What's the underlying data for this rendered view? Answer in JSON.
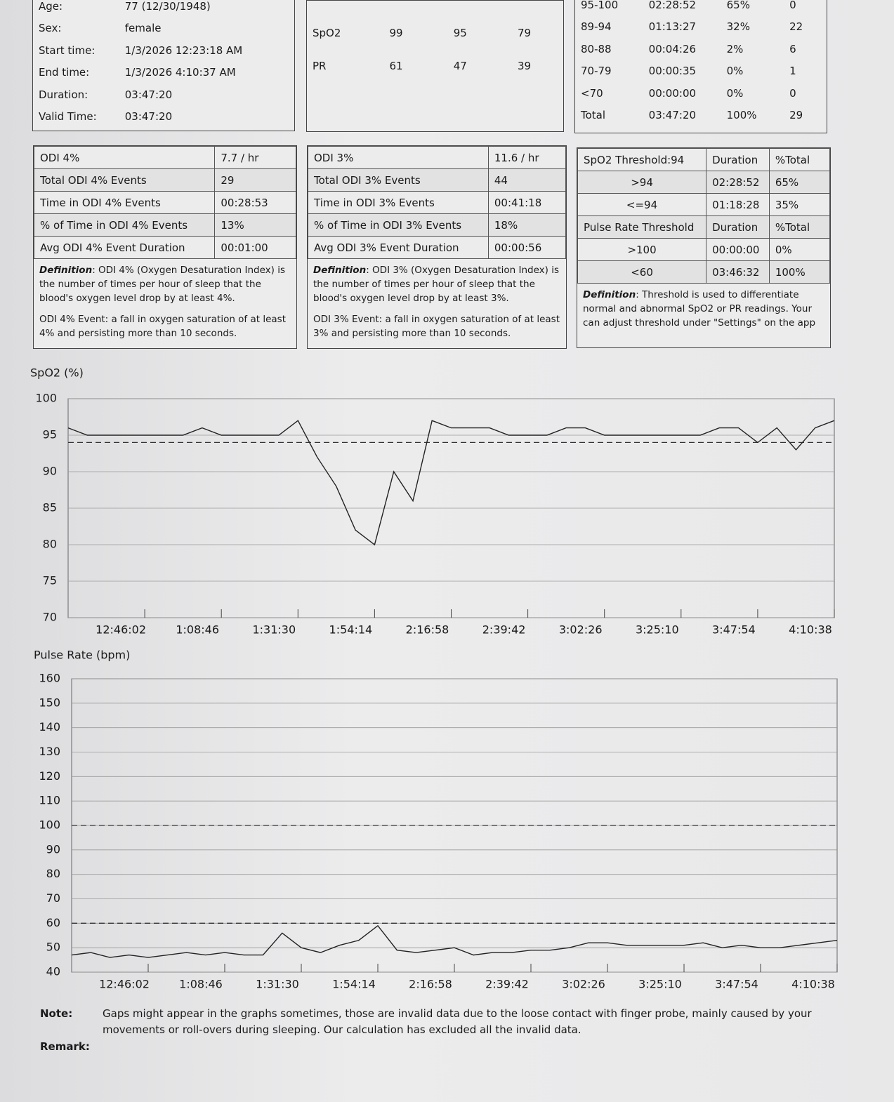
{
  "info": {
    "rows": [
      [
        "Age:",
        "77 (12/30/1948)"
      ],
      [
        "Sex:",
        "female"
      ],
      [
        "Start time:",
        "1/3/2026 12:23:18 AM"
      ],
      [
        "End time:",
        "1/3/2026 4:10:37 AM"
      ],
      [
        "Duration:",
        "03:47:20"
      ],
      [
        "Valid Time:",
        "03:47:20"
      ]
    ]
  },
  "summary": {
    "rows": [
      [
        "SpO2",
        "99",
        "95",
        "79"
      ],
      [
        "PR",
        "61",
        "47",
        "39"
      ]
    ]
  },
  "ranges": {
    "rows": [
      [
        "95-100",
        "02:28:52",
        "65%",
        "0"
      ],
      [
        "89-94",
        "01:13:27",
        "32%",
        "22"
      ],
      [
        "80-88",
        "00:04:26",
        "2%",
        "6"
      ],
      [
        "70-79",
        "00:00:35",
        "0%",
        "1"
      ],
      [
        "<70",
        "00:00:00",
        "0%",
        "0"
      ],
      [
        "Total",
        "03:47:20",
        "100%",
        "29"
      ]
    ]
  },
  "odi4": {
    "rows": [
      [
        "ODI 4%",
        "7.7 / hr"
      ],
      [
        "Total ODI 4% Events",
        "29"
      ],
      [
        "Time in ODI 4% Events",
        "00:28:53"
      ],
      [
        "% of Time in ODI 4% Events",
        "13%"
      ],
      [
        "Avg ODI 4% Event Duration",
        "00:01:00"
      ]
    ],
    "definition_label": "Definition",
    "definition": ": ODI 4% (Oxygen Desaturation Index) is the number of times per hour of sleep that the blood's oxygen level drop by at least 4%.",
    "event": "ODI 4% Event: a fall in oxygen saturation of at least 4% and persisting more than 10 seconds."
  },
  "odi3": {
    "rows": [
      [
        "ODI 3%",
        "11.6 / hr"
      ],
      [
        "Total ODI 3% Events",
        "44"
      ],
      [
        "Time in ODI 3% Events",
        "00:41:18"
      ],
      [
        "% of Time in ODI 3% Events",
        "18%"
      ],
      [
        "Avg ODI 3% Event Duration",
        "00:00:56"
      ]
    ],
    "definition_label": "Definition",
    "definition": ": ODI 3% (Oxygen Desaturation Index) is the number of times per hour of sleep that the blood's oxygen level drop by at least 3%.",
    "event": "ODI 3% Event: a fall in oxygen saturation of at least 3% and persisting more than 10 seconds."
  },
  "threshold": {
    "rows": [
      [
        "SpO2 Threshold:94",
        "Duration",
        "%Total"
      ],
      [
        ">94",
        "02:28:52",
        "65%"
      ],
      [
        "<=94",
        "01:18:28",
        "35%"
      ],
      [
        "Pulse Rate Threshold",
        "Duration",
        "%Total"
      ],
      [
        ">100",
        "00:00:00",
        "0%"
      ],
      [
        "<60",
        "03:46:32",
        "100%"
      ]
    ],
    "definition_label": "Definition",
    "definition": ": Threshold is used to differentiate normal and abnormal SpO2 or PR readings. Your can adjust threshold under \"Settings\" on the app"
  },
  "chart_data": [
    {
      "type": "line",
      "title": "SpO2 (%)",
      "color": "#222222",
      "grid": true,
      "x": [
        "12:23:18",
        "12:28:59",
        "12:34:40",
        "12:40:21",
        "12:46:02",
        "12:51:43",
        "12:57:24",
        "1:03:05",
        "1:08:46",
        "1:14:27",
        "1:20:08",
        "1:25:49",
        "1:31:30",
        "1:37:11",
        "1:42:52",
        "1:48:33",
        "1:54:14",
        "1:59:55",
        "2:05:36",
        "2:11:17",
        "2:16:58",
        "2:22:39",
        "2:28:20",
        "2:34:01",
        "2:39:42",
        "2:45:23",
        "2:51:04",
        "2:56:45",
        "3:02:26",
        "3:08:07",
        "3:13:48",
        "3:19:29",
        "3:25:10",
        "3:30:51",
        "3:36:32",
        "3:42:13",
        "3:47:54",
        "3:53:35",
        "3:59:16",
        "4:04:57",
        "4:10:38"
      ],
      "values": [
        96,
        95,
        95,
        95,
        95,
        95,
        95,
        96,
        95,
        95,
        95,
        95,
        97,
        92,
        88,
        82,
        80,
        90,
        86,
        97,
        96,
        96,
        96,
        95,
        95,
        95,
        96,
        96,
        95,
        95,
        95,
        95,
        95,
        95,
        96,
        96,
        94,
        96,
        93,
        96,
        97
      ],
      "xlim": [
        "12:23:18",
        "4:10:38"
      ],
      "xticks": [
        "12:46:02",
        "1:08:46",
        "1:31:30",
        "1:54:14",
        "2:16:58",
        "2:39:42",
        "3:02:26",
        "3:25:10",
        "3:47:54",
        "4:10:38"
      ],
      "ylim": [
        70,
        100
      ],
      "yticks": [
        70,
        75,
        80,
        85,
        90,
        95,
        100
      ],
      "thresholds": [
        94
      ]
    },
    {
      "type": "line",
      "title": "Pulse Rate (bpm)",
      "color": "#222222",
      "grid": true,
      "x": [
        "12:23:18",
        "12:28:59",
        "12:34:40",
        "12:40:21",
        "12:46:02",
        "12:51:43",
        "12:57:24",
        "1:03:05",
        "1:08:46",
        "1:14:27",
        "1:20:08",
        "1:25:49",
        "1:31:30",
        "1:37:11",
        "1:42:52",
        "1:48:33",
        "1:54:14",
        "1:59:55",
        "2:05:36",
        "2:11:17",
        "2:16:58",
        "2:22:39",
        "2:28:20",
        "2:34:01",
        "2:39:42",
        "2:45:23",
        "2:51:04",
        "2:56:45",
        "3:02:26",
        "3:08:07",
        "3:13:48",
        "3:19:29",
        "3:25:10",
        "3:30:51",
        "3:36:32",
        "3:42:13",
        "3:47:54",
        "3:53:35",
        "3:59:16",
        "4:04:57",
        "4:10:38"
      ],
      "values": [
        47,
        48,
        46,
        47,
        46,
        47,
        48,
        47,
        48,
        47,
        47,
        56,
        50,
        48,
        51,
        53,
        59,
        49,
        48,
        49,
        50,
        47,
        48,
        48,
        49,
        49,
        50,
        52,
        52,
        51,
        51,
        51,
        51,
        52,
        50,
        51,
        50,
        50,
        51,
        52,
        53
      ],
      "xlim": [
        "12:23:18",
        "4:10:38"
      ],
      "xticks": [
        "12:46:02",
        "1:08:46",
        "1:31:30",
        "1:54:14",
        "2:16:58",
        "2:39:42",
        "3:02:26",
        "3:25:10",
        "3:47:54",
        "4:10:38"
      ],
      "ylim": [
        40,
        160
      ],
      "yticks": [
        40,
        50,
        60,
        70,
        80,
        90,
        100,
        110,
        120,
        130,
        140,
        150,
        160
      ],
      "thresholds": [
        100,
        60
      ]
    }
  ],
  "note": {
    "label": "Note:",
    "text": "Gaps might appear in the graphs sometimes, those are invalid data due to the loose contact with finger probe, mainly caused by your movements or roll-overs during sleeping. Our calculation has excluded all the invalid data."
  },
  "remark": {
    "label": "Remark:"
  }
}
